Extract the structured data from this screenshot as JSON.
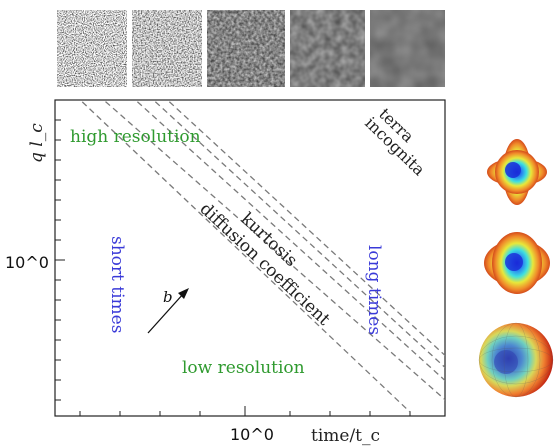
{
  "figure": {
    "axes": {
      "xlabel": "time/t_c",
      "ylabel": "q l_c",
      "x_tick": "10^0",
      "y_tick": "10^0",
      "scale": "log-log"
    },
    "regions": {
      "high_resolution": "high resolution",
      "low_resolution": "low resolution",
      "short_times": "short times",
      "long_times": "long times",
      "terra_incognita_line1": "terra",
      "terra_incognita_line2": "incognita",
      "kurtosis": "kurtosis",
      "diffusion_coefficient": "diffusion coefficient",
      "arrow_label": "b"
    },
    "colors": {
      "green_text": "#2f9a2f",
      "blue_text": "#3a3ad8",
      "dashed_line": "#7a7a7a",
      "frame": "#222222"
    },
    "thumbnails_count": 5,
    "shapes_count": 3
  }
}
